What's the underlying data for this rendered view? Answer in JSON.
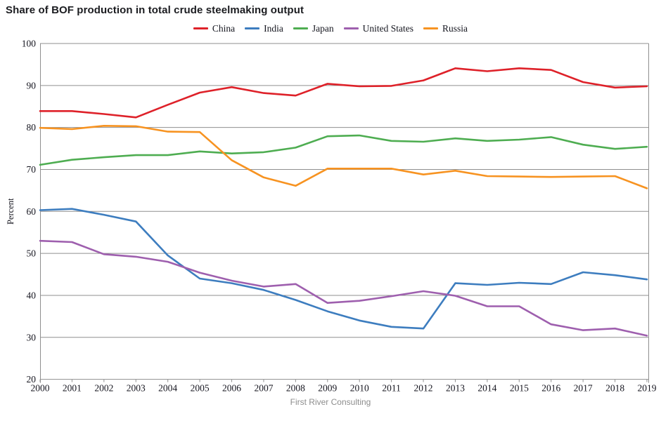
{
  "chart_data": {
    "type": "line",
    "title": "Share of BOF production in total crude steelmaking output",
    "ylabel": "Percent",
    "footer": "First River Consulting",
    "ylim": [
      20,
      100
    ],
    "ytick_step": 10,
    "grid": true,
    "legend_position": "top-center",
    "x": [
      2000,
      2001,
      2002,
      2003,
      2004,
      2005,
      2006,
      2007,
      2008,
      2009,
      2010,
      2011,
      2012,
      2013,
      2014,
      2015,
      2016,
      2017,
      2018,
      2019
    ],
    "series": [
      {
        "name": "China",
        "color": "#de2129",
        "values": [
          83.9,
          83.9,
          83.2,
          82.4,
          85.4,
          88.3,
          89.6,
          88.2,
          87.6,
          90.4,
          89.8,
          89.9,
          91.2,
          94.1,
          93.4,
          94.1,
          93.7,
          90.8,
          89.5,
          89.8
        ]
      },
      {
        "name": "India",
        "color": "#3d7dbf",
        "values": [
          60.3,
          60.6,
          59.2,
          57.6,
          49.5,
          44.0,
          42.9,
          41.3,
          38.9,
          36.2,
          34.0,
          32.5,
          32.1,
          42.9,
          42.5,
          43.0,
          42.7,
          45.5,
          44.8,
          43.8
        ]
      },
      {
        "name": "Japan",
        "color": "#4ead51",
        "values": [
          71.1,
          72.3,
          72.9,
          73.4,
          73.4,
          74.3,
          73.8,
          74.1,
          75.2,
          77.9,
          78.1,
          76.8,
          76.6,
          77.4,
          76.8,
          77.1,
          77.7,
          75.9,
          74.9,
          75.4
        ]
      },
      {
        "name": "United States",
        "color": "#9e5fae",
        "values": [
          53.0,
          52.7,
          49.8,
          49.2,
          48.0,
          45.4,
          43.5,
          42.1,
          42.7,
          38.2,
          38.7,
          39.8,
          41.0,
          39.9,
          37.4,
          37.4,
          33.1,
          31.7,
          32.1,
          30.4
        ]
      },
      {
        "name": "Russia",
        "color": "#f79321",
        "values": [
          79.9,
          79.6,
          80.4,
          80.3,
          79.0,
          78.9,
          72.2,
          68.1,
          66.1,
          70.2,
          70.2,
          70.2,
          68.8,
          69.7,
          68.4,
          68.3,
          68.2,
          68.3,
          68.4,
          65.5
        ]
      }
    ]
  }
}
